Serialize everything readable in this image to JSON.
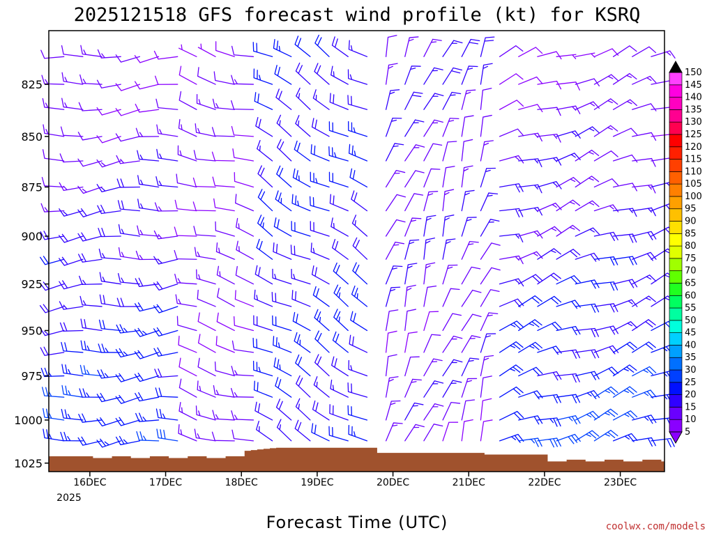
{
  "chart_data": {
    "type": "wind-barb-profile",
    "title": "2025121518 GFS forecast wind profile (kt) for KSRQ",
    "xlabel": "Forecast Time (UTC)",
    "ylabel": "",
    "credit": "coolwx.com/models",
    "x_ticks": [
      "16DEC",
      "17DEC",
      "18DEC",
      "19DEC",
      "20DEC",
      "21DEC",
      "22DEC",
      "23DEC"
    ],
    "x_year": "2025",
    "y_ticks": [
      825,
      850,
      875,
      900,
      925,
      950,
      975,
      1000,
      1025
    ],
    "ylim": [
      800,
      1030
    ],
    "units": "kt",
    "colorbar_levels": [
      5,
      10,
      15,
      20,
      25,
      30,
      35,
      40,
      45,
      50,
      55,
      60,
      65,
      70,
      75,
      80,
      85,
      90,
      95,
      100,
      105,
      110,
      115,
      120,
      125,
      130,
      135,
      140,
      145,
      150
    ],
    "colorbar_colors": [
      "#8a00ff",
      "#6a00ff",
      "#3000ff",
      "#0010ff",
      "#0040ff",
      "#0070ff",
      "#00a0ff",
      "#00d0ff",
      "#00ffdd",
      "#00ffa0",
      "#00ff60",
      "#20ff20",
      "#60ff00",
      "#a0ff00",
      "#e0ff00",
      "#ffff00",
      "#ffe000",
      "#ffc000",
      "#ffa000",
      "#ff8000",
      "#ff6000",
      "#ff4000",
      "#ff2000",
      "#ff0000",
      "#ff0050",
      "#ff0090",
      "#ff00c0",
      "#ff00e0",
      "#ff40ff",
      "#ff80ff"
    ],
    "terrain_color": "#a0522d",
    "pressure_levels": [
      812,
      825,
      837,
      850,
      862,
      875,
      887,
      900,
      912,
      925,
      937,
      950,
      962,
      975,
      987,
      1000,
      1012
    ],
    "forecast_hours": "0 to 186 every 6 h",
    "wind_segments": [
      {
        "hours": [
          0,
          36
        ],
        "direction_deg": 265,
        "speed_kt_surface": 25,
        "speed_kt_aloft": 10
      },
      {
        "hours": [
          36,
          60
        ],
        "direction_deg": 285,
        "speed_kt_surface": 12,
        "speed_kt_aloft": 10
      },
      {
        "hours": [
          60,
          96
        ],
        "direction_deg": 300,
        "speed_kt_surface": 20,
        "speed_kt_aloft": 20
      },
      {
        "hours": [
          96,
          132
        ],
        "direction_deg": 20,
        "speed_kt_surface": 12,
        "speed_kt_aloft": 15
      },
      {
        "hours": [
          132,
          186
        ],
        "direction_deg": 70,
        "speed_kt_surface": 25,
        "speed_kt_aloft": 10
      }
    ]
  }
}
